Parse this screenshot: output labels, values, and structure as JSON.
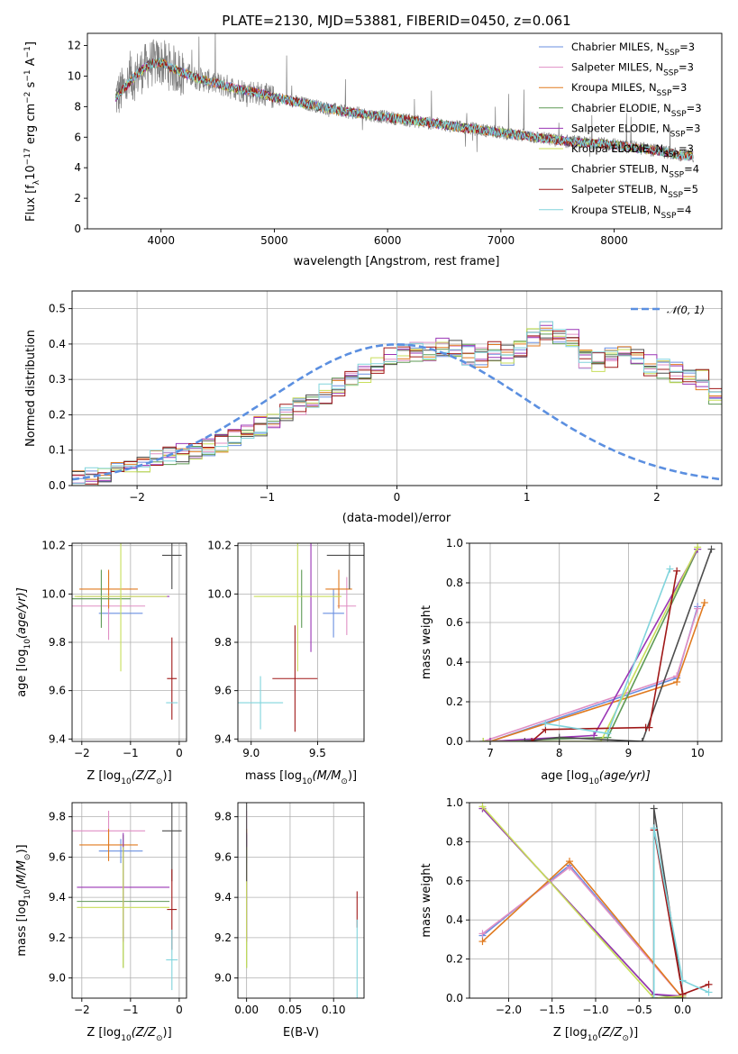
{
  "colors": {
    "Chabrier MILES": "#6a8fe0",
    "Salpeter MILES": "#e08fc4",
    "Kroupa MILES": "#e07a1f",
    "Chabrier ELODIE": "#5e9a55",
    "Salpeter ELODIE": "#9a35b5",
    "Kroupa ELODIE": "#c8de5a",
    "Chabrier STELIB": "#4d4d4d",
    "Salpeter STELIB": "#a01818",
    "Kroupa STELIB": "#80d4dc",
    "normal": "#5b8fe0",
    "data": "#808080"
  },
  "chart_data": [
    {
      "type": "line",
      "title": "PLATE=2130, MJD=53881, FIBERID=0450, z=0.061",
      "xlabel": "wavelength [Angstrom, rest frame]",
      "ylabel_parts": {
        "a": "Flux [f",
        "b": "λ",
        "c": "10",
        "d": "−17",
        "e": " erg cm",
        "f": "−2",
        "g": " s",
        "h": "−1",
        "i": " A",
        "j": "−1",
        "k": "]"
      },
      "xlim": [
        3350,
        8950
      ],
      "ylim": [
        0,
        12.8
      ],
      "xticks": [
        "4000",
        "5000",
        "6000",
        "7000",
        "8000"
      ],
      "xtick_values": [
        4000,
        5000,
        6000,
        7000,
        8000
      ],
      "yticks": [
        "0",
        "2",
        "4",
        "6",
        "8",
        "10",
        "12"
      ],
      "ytick_values": [
        0,
        2,
        4,
        6,
        8,
        10,
        12
      ],
      "continuum_x": [
        3600,
        3700,
        3800,
        3900,
        4000,
        4100,
        4200,
        4300,
        4400,
        4500,
        4600,
        4700,
        4800,
        4900,
        5000,
        5200,
        5400,
        5600,
        5800,
        6000,
        6200,
        6400,
        6600,
        6800,
        7000,
        7200,
        7400,
        7600,
        7800,
        8000,
        8200,
        8400,
        8600
      ],
      "continuum_y": [
        8.6,
        9.4,
        10.2,
        10.8,
        10.9,
        10.5,
        10.2,
        9.9,
        9.7,
        9.5,
        9.3,
        9.1,
        9.0,
        8.8,
        8.6,
        8.3,
        8.0,
        7.7,
        7.5,
        7.3,
        7.1,
        6.9,
        6.7,
        6.5,
        6.3,
        6.1,
        5.9,
        5.7,
        5.6,
        5.5,
        5.3,
        5.1,
        4.8
      ],
      "legend": [
        {
          "name": "Chabrier MILES",
          "n": "3"
        },
        {
          "name": "Salpeter MILES",
          "n": "3"
        },
        {
          "name": "Kroupa MILES",
          "n": "3"
        },
        {
          "name": "Chabrier ELODIE",
          "n": "3"
        },
        {
          "name": "Salpeter ELODIE",
          "n": "3"
        },
        {
          "name": "Kroupa ELODIE",
          "n": "3"
        },
        {
          "name": "Chabrier STELIB",
          "n": "4"
        },
        {
          "name": "Salpeter STELIB",
          "n": "5"
        },
        {
          "name": "Kroupa STELIB",
          "n": "4"
        }
      ],
      "legend_prefix": "N",
      "legend_sub": "SSP",
      "legend_placement": "upper-right"
    },
    {
      "type": "histogram",
      "xlabel": "(data-model)/error",
      "ylabel": "Normed distribution",
      "xlim": [
        -2.5,
        2.5
      ],
      "ylim": [
        0,
        0.55
      ],
      "xticks": [
        "−2",
        "−1",
        "0",
        "1",
        "2"
      ],
      "xtick_values": [
        -2,
        -1,
        0,
        1,
        2
      ],
      "yticks": [
        "0.0",
        "0.1",
        "0.2",
        "0.3",
        "0.4",
        "0.5"
      ],
      "ytick_values": [
        0.0,
        0.1,
        0.2,
        0.3,
        0.4,
        0.5
      ],
      "bin_width": 0.1,
      "bins_start": -2.5,
      "base_counts": [
        0.02,
        0.025,
        0.03,
        0.04,
        0.05,
        0.06,
        0.07,
        0.08,
        0.09,
        0.1,
        0.11,
        0.12,
        0.13,
        0.15,
        0.17,
        0.18,
        0.2,
        0.22,
        0.24,
        0.26,
        0.28,
        0.3,
        0.32,
        0.34,
        0.36,
        0.37,
        0.38,
        0.38,
        0.39,
        0.39,
        0.37,
        0.36,
        0.38,
        0.37,
        0.38,
        0.42,
        0.44,
        0.43,
        0.42,
        0.36,
        0.35,
        0.36,
        0.37,
        0.36,
        0.34,
        0.33,
        0.32,
        0.31,
        0.3,
        0.26,
        0.25,
        0.24,
        0.23,
        0.21,
        0.19,
        0.18,
        0.17,
        0.16,
        0.15,
        0.13,
        0.12,
        0.11,
        0.1,
        0.09,
        0.08,
        0.07,
        0.06,
        0.05,
        0.045,
        0.04,
        0.035,
        0.03,
        0.03,
        0.03,
        0.025,
        0.025,
        0.02,
        0.02,
        0.02,
        0.02
      ],
      "legend_label": "𝒩(0, 1)",
      "legend_placement": "upper-right"
    },
    {
      "type": "errorbar",
      "xlabel_a": "Z [log",
      "xlabel_b": "10",
      "xlabel_c": "(Z/Z",
      "xlabel_d": "⊙",
      "xlabel_e": ")]",
      "ylabel_a": "age  [log",
      "ylabel_b": "10",
      "ylabel_c": "(age/yr)]",
      "xlim": [
        -2.2,
        0.15
      ],
      "ylim": [
        9.39,
        10.21
      ],
      "xticks": [
        "−2",
        "−1",
        "0"
      ],
      "xtick_values": [
        -2,
        -1,
        0
      ],
      "yticks": [
        "9.4",
        "9.6",
        "9.8",
        "10.0",
        "10.2"
      ],
      "ytick_values": [
        9.4,
        9.6,
        9.8,
        10.0,
        10.2
      ],
      "points": [
        {
          "series": "Chabrier MILES",
          "x": -1.2,
          "xerr": 0.45,
          "y": 9.92,
          "yerr": 0.0
        },
        {
          "series": "Salpeter MILES",
          "x": -1.45,
          "xerr": 0.75,
          "y": 9.95,
          "yerr": 0.14
        },
        {
          "series": "Kroupa MILES",
          "x": -1.45,
          "xerr": 0.6,
          "y": 10.02,
          "yerr": 0.08
        },
        {
          "series": "Chabrier ELODIE",
          "x": -1.6,
          "xerr": 0.6,
          "y": 9.98,
          "yerr": 0.12
        },
        {
          "series": "Salpeter ELODIE",
          "x": -1.15,
          "xerr": 0.95,
          "y": 9.99,
          "yerr": 0.0
        },
        {
          "series": "Kroupa ELODIE",
          "x": -1.2,
          "xerr": 0.95,
          "y": 9.99,
          "yerr": 0.31
        },
        {
          "series": "Chabrier STELIB",
          "x": -0.15,
          "xerr": 0.2,
          "y": 10.16,
          "yerr": 0.14
        },
        {
          "series": "Salpeter STELIB",
          "x": -0.15,
          "xerr": 0.1,
          "y": 9.65,
          "yerr": 0.17
        },
        {
          "series": "Kroupa STELIB",
          "x": -0.15,
          "xerr": 0.12,
          "y": 9.55,
          "yerr": 0.0
        }
      ]
    },
    {
      "type": "errorbar",
      "xlabel_a": "mass [log",
      "xlabel_b": "10",
      "xlabel_c": "(M/M",
      "xlabel_d": "⊙",
      "xlabel_e": ")]",
      "xlim": [
        8.9,
        9.85
      ],
      "ylim": [
        9.39,
        10.21
      ],
      "xticks": [
        "9.0",
        "9.5"
      ],
      "xtick_values": [
        9.0,
        9.5
      ],
      "yticks": [
        "9.4",
        "9.6",
        "9.8",
        "10.0",
        "10.2"
      ],
      "ytick_values": [
        9.4,
        9.6,
        9.8,
        10.0,
        10.2
      ],
      "points": [
        {
          "series": "Chabrier MILES",
          "x": 9.62,
          "xerr": 0.08,
          "y": 9.92,
          "yerr": 0.1
        },
        {
          "series": "Salpeter MILES",
          "x": 9.72,
          "xerr": 0.07,
          "y": 9.95,
          "yerr": 0.12
        },
        {
          "series": "Kroupa MILES",
          "x": 9.66,
          "xerr": 0.1,
          "y": 10.02,
          "yerr": 0.08
        },
        {
          "series": "Chabrier ELODIE",
          "x": 9.38,
          "xerr": 0.0,
          "y": 9.98,
          "yerr": 0.12
        },
        {
          "series": "Salpeter ELODIE",
          "x": 9.45,
          "xerr": 0.0,
          "y": 9.99,
          "yerr": 0.23
        },
        {
          "series": "Kroupa ELODIE",
          "x": 9.35,
          "xerr": 0.33,
          "y": 9.99,
          "yerr": 0.31
        },
        {
          "series": "Chabrier STELIB",
          "x": 9.74,
          "xerr": 0.17,
          "y": 10.16,
          "yerr": 0.14
        },
        {
          "series": "Salpeter STELIB",
          "x": 9.33,
          "xerr": 0.17,
          "y": 9.65,
          "yerr": 0.22
        },
        {
          "series": "Kroupa STELIB",
          "x": 9.07,
          "xerr": 0.17,
          "y": 9.55,
          "yerr": 0.11
        }
      ]
    },
    {
      "type": "line",
      "xlabel_a": "age  [log",
      "xlabel_b": "10",
      "xlabel_c": "(age/yr)]",
      "ylabel": "mass weight",
      "xlim": [
        6.7,
        10.35
      ],
      "ylim": [
        0,
        1.0
      ],
      "xticks": [
        "7",
        "8",
        "9",
        "10"
      ],
      "xtick_values": [
        7,
        8,
        9,
        10
      ],
      "yticks": [
        "0.0",
        "0.2",
        "0.4",
        "0.6",
        "0.8",
        "1.0"
      ],
      "ytick_values": [
        0.0,
        0.2,
        0.4,
        0.6,
        0.8,
        1.0
      ],
      "series": [
        {
          "name": "Chabrier MILES",
          "x": [
            7.0,
            9.7,
            10.0
          ],
          "y": [
            0.0,
            0.32,
            0.68
          ]
        },
        {
          "name": "Salpeter MILES",
          "x": [
            6.9,
            9.7,
            10.0
          ],
          "y": [
            0.0,
            0.33,
            0.67
          ]
        },
        {
          "name": "Kroupa MILES",
          "x": [
            7.0,
            9.7,
            10.1
          ],
          "y": [
            0.0,
            0.3,
            0.7
          ]
        },
        {
          "name": "Chabrier ELODIE",
          "x": [
            6.9,
            8.7,
            10.0
          ],
          "y": [
            0.0,
            0.02,
            0.97
          ]
        },
        {
          "name": "Salpeter ELODIE",
          "x": [
            7.0,
            8.5,
            10.0
          ],
          "y": [
            0.0,
            0.03,
            0.97
          ]
        },
        {
          "name": "Kroupa ELODIE",
          "x": [
            6.9,
            8.6,
            10.0
          ],
          "y": [
            0.0,
            0.0,
            0.98
          ]
        },
        {
          "name": "Chabrier STELIB",
          "x": [
            7.5,
            8.0,
            9.2,
            10.2
          ],
          "y": [
            0.0,
            0.02,
            0.0,
            0.97
          ]
        },
        {
          "name": "Salpeter STELIB",
          "x": [
            7.6,
            7.8,
            9.25,
            9.3,
            9.7
          ],
          "y": [
            0.0,
            0.06,
            0.07,
            0.07,
            0.86
          ]
        },
        {
          "name": "Kroupa STELIB",
          "x": [
            7.8,
            8.7,
            9.6
          ],
          "y": [
            0.09,
            0.04,
            0.87
          ]
        }
      ]
    },
    {
      "type": "errorbar",
      "xlabel_a": "Z [log",
      "xlabel_b": "10",
      "xlabel_c": "(Z/Z",
      "xlabel_d": "⊙",
      "xlabel_e": ")]",
      "ylabel_a": "mass [log",
      "ylabel_b": "10",
      "ylabel_c": "(M/M",
      "ylabel_d": "⊙",
      "ylabel_e": ")]",
      "xlim": [
        -2.2,
        0.15
      ],
      "ylim": [
        8.9,
        9.87
      ],
      "xticks": [
        "−2",
        "−1",
        "0"
      ],
      "xtick_values": [
        -2,
        -1,
        0
      ],
      "yticks": [
        "9.0",
        "9.2",
        "9.4",
        "9.6",
        "9.8"
      ],
      "ytick_values": [
        9.0,
        9.2,
        9.4,
        9.6,
        9.8
      ],
      "points": [
        {
          "series": "Chabrier MILES",
          "x": -1.2,
          "xerr": 0.45,
          "y": 9.63,
          "yerr": 0.06
        },
        {
          "series": "Salpeter MILES",
          "x": -1.45,
          "xerr": 0.75,
          "y": 9.73,
          "yerr": 0.1
        },
        {
          "series": "Kroupa MILES",
          "x": -1.45,
          "xerr": 0.6,
          "y": 9.66,
          "yerr": 0.08
        },
        {
          "series": "Chabrier ELODIE",
          "x": -1.15,
          "xerr": 0.95,
          "y": 9.38,
          "yerr": 0.33
        },
        {
          "series": "Salpeter ELODIE",
          "x": -1.15,
          "xerr": 0.95,
          "y": 9.45,
          "yerr": 0.27
        },
        {
          "series": "Kroupa ELODIE",
          "x": -1.15,
          "xerr": 0.95,
          "y": 9.35,
          "yerr": 0.3
        },
        {
          "series": "Chabrier STELIB",
          "x": -0.15,
          "xerr": 0.2,
          "y": 9.73,
          "yerr": 0.25
        },
        {
          "series": "Salpeter STELIB",
          "x": -0.15,
          "xerr": 0.1,
          "y": 9.34,
          "yerr": 0.2
        },
        {
          "series": "Kroupa STELIB",
          "x": -0.15,
          "xerr": 0.12,
          "y": 9.09,
          "yerr": 0.15
        }
      ]
    },
    {
      "type": "errorbar",
      "xlabel": "E(B-V)",
      "xlim": [
        -0.01,
        0.135
      ],
      "ylim": [
        8.9,
        9.87
      ],
      "xticks": [
        "0.00",
        "0.05",
        "0.10"
      ],
      "xtick_values": [
        0.0,
        0.05,
        0.1
      ],
      "yticks": [
        "9.0",
        "9.2",
        "9.4",
        "9.6",
        "9.8"
      ],
      "ytick_values": [
        9.0,
        9.2,
        9.4,
        9.6,
        9.8
      ],
      "points": [
        {
          "series": "Chabrier MILES",
          "x": 0.0,
          "xerr": 0.0,
          "y": 9.63,
          "yerr": 0.06
        },
        {
          "series": "Salpeter MILES",
          "x": 0.0,
          "xerr": 0.0,
          "y": 9.73,
          "yerr": 0.1
        },
        {
          "series": "Kroupa MILES",
          "x": 0.0,
          "xerr": 0.0,
          "y": 9.66,
          "yerr": 0.08
        },
        {
          "series": "Chabrier ELODIE",
          "x": 0.0,
          "xerr": 0.0,
          "y": 9.38,
          "yerr": 0.33
        },
        {
          "series": "Salpeter ELODIE",
          "x": 0.0,
          "xerr": 0.0,
          "y": 9.45,
          "yerr": 0.27
        },
        {
          "series": "Kroupa ELODIE",
          "x": 0.0,
          "xerr": 0.0,
          "y": 9.35,
          "yerr": 0.3
        },
        {
          "series": "Chabrier STELIB",
          "x": 0.0,
          "xerr": 0.0,
          "y": 9.73,
          "yerr": 0.25
        },
        {
          "series": "Salpeter STELIB",
          "x": 0.127,
          "xerr": 0.0,
          "y": 9.34,
          "yerr": 0.09
        },
        {
          "series": "Kroupa STELIB",
          "x": 0.127,
          "xerr": 0.0,
          "y": 9.09,
          "yerr": 0.2
        }
      ]
    },
    {
      "type": "line",
      "xlabel_a": "Z [log",
      "xlabel_b": "10",
      "xlabel_c": "(Z/Z",
      "xlabel_d": "⊙",
      "xlabel_e": ")]",
      "ylabel": "mass weight",
      "xlim": [
        -2.45,
        0.45
      ],
      "ylim": [
        0,
        1.0
      ],
      "xticks": [
        "−2.0",
        "−1.5",
        "−1.0",
        "−0.5",
        "0.0"
      ],
      "xtick_values": [
        -2.0,
        -1.5,
        -1.0,
        -0.5,
        0.0
      ],
      "yticks": [
        "0.0",
        "0.2",
        "0.4",
        "0.6",
        "0.8",
        "1.0"
      ],
      "ytick_values": [
        0.0,
        0.2,
        0.4,
        0.6,
        0.8,
        1.0
      ],
      "series": [
        {
          "name": "Chabrier MILES",
          "x": [
            -2.3,
            -1.3,
            0.0
          ],
          "y": [
            0.32,
            0.68,
            0.0
          ]
        },
        {
          "name": "Salpeter MILES",
          "x": [
            -2.3,
            -1.3,
            0.0
          ],
          "y": [
            0.33,
            0.67,
            0.0
          ]
        },
        {
          "name": "Kroupa MILES",
          "x": [
            -2.3,
            -1.3,
            0.0
          ],
          "y": [
            0.29,
            0.7,
            0.0
          ]
        },
        {
          "name": "Chabrier ELODIE",
          "x": [
            -2.3,
            -0.33,
            0.0
          ],
          "y": [
            0.97,
            0.02,
            0.0
          ]
        },
        {
          "name": "Salpeter ELODIE",
          "x": [
            -2.3,
            -0.33,
            0.0
          ],
          "y": [
            0.97,
            0.02,
            0.01
          ]
        },
        {
          "name": "Kroupa ELODIE",
          "x": [
            -2.3,
            -0.33,
            0.0
          ],
          "y": [
            0.98,
            0.0,
            0.01
          ]
        },
        {
          "name": "Chabrier STELIB",
          "x": [
            -0.33,
            -0.33,
            0.0
          ],
          "y": [
            0.0,
            0.97,
            0.02
          ]
        },
        {
          "name": "Salpeter STELIB",
          "x": [
            -0.33,
            -0.33,
            0.0,
            0.3
          ],
          "y": [
            0.0,
            0.86,
            0.02,
            0.07
          ]
        },
        {
          "name": "Kroupa STELIB",
          "x": [
            -0.33,
            -0.33,
            0.0,
            0.3
          ],
          "y": [
            0.0,
            0.87,
            0.09,
            0.03
          ]
        }
      ]
    }
  ]
}
